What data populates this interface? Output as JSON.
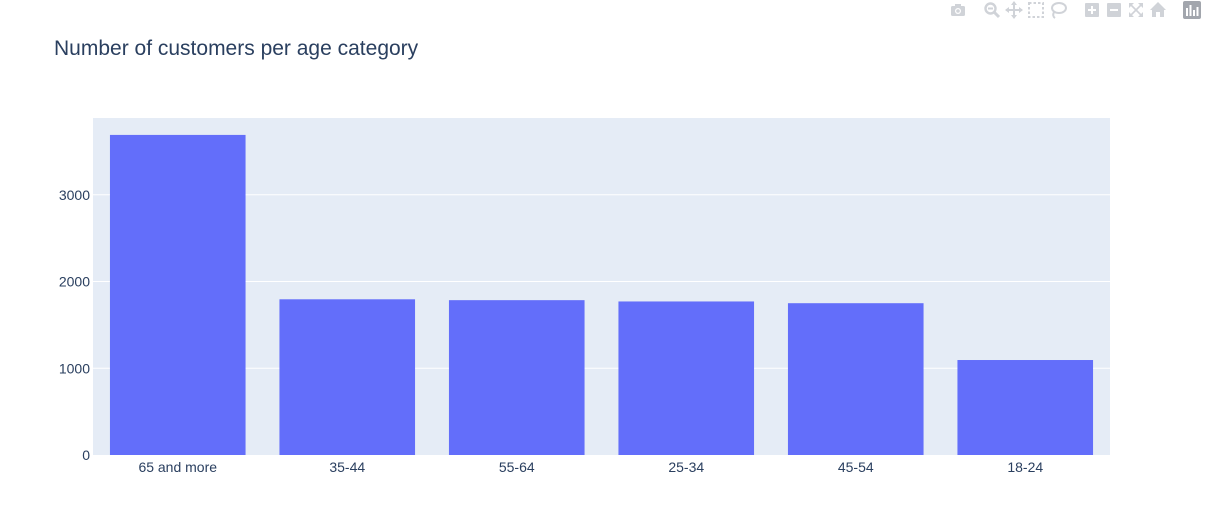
{
  "colors": {
    "plot_bg": "#e5ecf6",
    "bar": "#636efa",
    "grid": "#ffffff",
    "text": "#2a3f5f",
    "modebar_icon": "#d0d3d8"
  },
  "modebar": {
    "buttons": [
      {
        "name": "camera-icon"
      },
      {
        "name": "zoom-icon"
      },
      {
        "name": "pan-icon"
      },
      {
        "name": "box-select-icon"
      },
      {
        "name": "lasso-select-icon"
      },
      {
        "name": "zoom-in-icon"
      },
      {
        "name": "zoom-out-icon"
      },
      {
        "name": "autoscale-icon"
      },
      {
        "name": "reset-axes-icon"
      },
      {
        "name": "plotly-logo-icon"
      }
    ]
  },
  "chart_data": {
    "type": "bar",
    "title": "Number of customers per age category",
    "xlabel": "",
    "ylabel": "",
    "categories": [
      "65 and more",
      "35-44",
      "55-64",
      "25-34",
      "45-54",
      "18-24"
    ],
    "values": [
      3690,
      1795,
      1785,
      1770,
      1750,
      1095
    ],
    "ylim": [
      0,
      3885
    ],
    "yticks": [
      0,
      1000,
      2000,
      3000
    ],
    "ytick_labels": [
      "0",
      "1000",
      "2000",
      "3000"
    ],
    "grid": true,
    "legend": "none"
  }
}
